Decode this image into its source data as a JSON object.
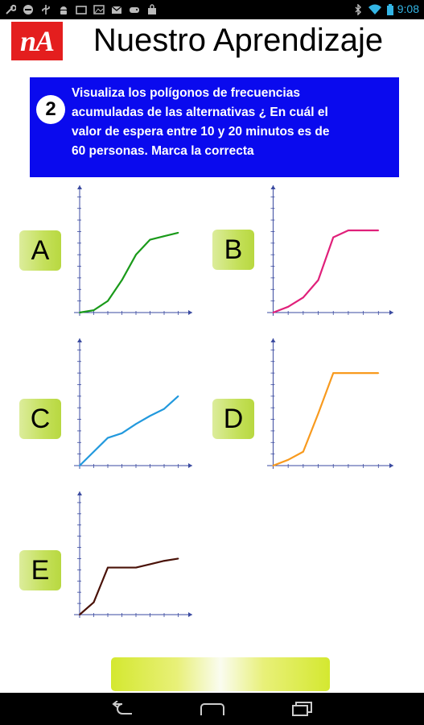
{
  "status_bar": {
    "time": "9:08",
    "left_icons": [
      "wrench-icon",
      "no-entry-icon",
      "usb-icon",
      "android-icon",
      "tv-icon",
      "image-icon",
      "gmail-icon",
      "gamepad-icon",
      "bag-icon"
    ],
    "right_icons": [
      "bluetooth-icon",
      "wifi-icon",
      "battery-icon"
    ],
    "time_color": "#33b5e5"
  },
  "header": {
    "logo_text": "nA",
    "title": "Nuestro Aprendizaje",
    "logo_color": "#e41e1e"
  },
  "question": {
    "number": "2",
    "lines": [
      "Visualiza los polígonos de frecuencias",
      "acumuladas de las alternativas ¿ En cuál  el",
      "valor de espera entre 10 y 20 minutos es de",
      "60 personas.  Marca la correcta"
    ],
    "panel_color": "#0a0aee"
  },
  "options": [
    {
      "label": "A"
    },
    {
      "label": "B"
    },
    {
      "label": "C"
    },
    {
      "label": "D"
    },
    {
      "label": "E"
    }
  ],
  "chart_data": [
    {
      "type": "line",
      "option": "A",
      "color": "#1a9a1a",
      "x": [
        0,
        5,
        10,
        15,
        20,
        25,
        30,
        35
      ],
      "values": [
        0,
        2,
        10,
        28,
        50,
        63,
        66,
        69
      ],
      "xlim": [
        -2,
        40
      ],
      "ylim": [
        0,
        110
      ]
    },
    {
      "type": "line",
      "option": "B",
      "color": "#e0207a",
      "x": [
        0,
        5,
        10,
        15,
        20,
        25,
        30,
        35
      ],
      "values": [
        0,
        5,
        13,
        28,
        65,
        71,
        71,
        71
      ],
      "xlim": [
        -2,
        40
      ],
      "ylim": [
        0,
        110
      ]
    },
    {
      "type": "line",
      "option": "C",
      "color": "#2299dd",
      "x": [
        0,
        5,
        10,
        15,
        20,
        25,
        30,
        35
      ],
      "values": [
        0,
        12,
        24,
        28,
        36,
        43,
        49,
        60
      ],
      "xlim": [
        -2,
        40
      ],
      "ylim": [
        0,
        110
      ]
    },
    {
      "type": "line",
      "option": "D",
      "color": "#f89a1e",
      "x": [
        0,
        5,
        10,
        15,
        20,
        25,
        30,
        35
      ],
      "values": [
        0,
        5,
        12,
        45,
        80,
        80,
        80,
        80
      ],
      "xlim": [
        -2,
        40
      ],
      "ylim": [
        0,
        110
      ]
    },
    {
      "type": "line",
      "option": "E",
      "color": "#4a1208",
      "x": [
        0,
        5,
        10,
        15,
        20,
        25,
        30,
        35
      ],
      "values": [
        0,
        11,
        42,
        42,
        42,
        45,
        48,
        50
      ],
      "xlim": [
        -2,
        40
      ],
      "ylim": [
        0,
        110
      ]
    }
  ],
  "navbar": {
    "icons": [
      "back-icon",
      "home-icon",
      "recent-apps-icon"
    ]
  }
}
